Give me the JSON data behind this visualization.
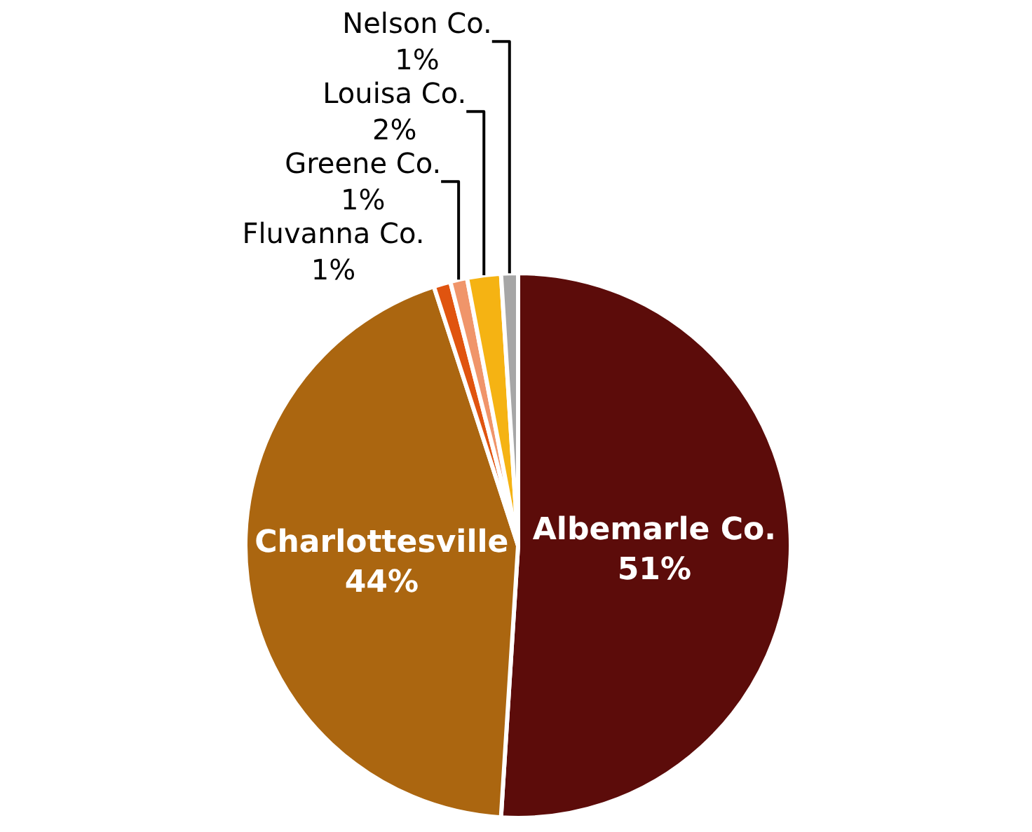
{
  "chart_data": {
    "type": "pie",
    "categories": [
      "Albemarle Co.",
      "Charlottesville",
      "Fluvanna Co.",
      "Greene Co.",
      "Louisa Co.",
      "Nelson Co."
    ],
    "values": [
      51,
      44,
      1,
      1,
      2,
      1
    ],
    "value_labels": [
      "51%",
      "44%",
      "1%",
      "1%",
      "2%",
      "1%"
    ],
    "colors": [
      "#5c0c0a",
      "#ab6610",
      "#e0540f",
      "#f0956a",
      "#f5b313",
      "#a6a6a6"
    ],
    "legend": false
  }
}
